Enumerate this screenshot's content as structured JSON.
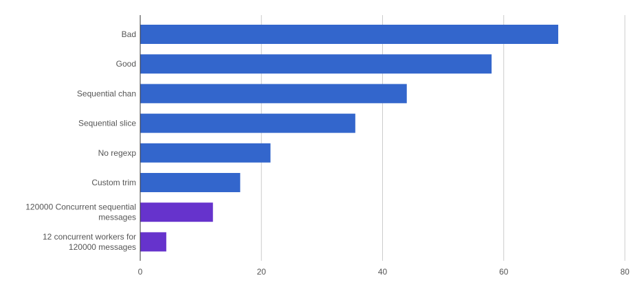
{
  "chart_data": {
    "type": "bar",
    "orientation": "horizontal",
    "title": "",
    "xlabel": "",
    "ylabel": "",
    "xlim": [
      0,
      80
    ],
    "xticks": [
      0,
      20,
      40,
      60,
      80
    ],
    "grid": true,
    "legend": "none",
    "categories": [
      [
        "Bad"
      ],
      [
        "Good"
      ],
      [
        "Sequential chan"
      ],
      [
        "Sequential slice"
      ],
      [
        "No regexp"
      ],
      [
        "Custom trim"
      ],
      [
        "120000 Concurrent sequential",
        "messages"
      ],
      [
        "12 concurrent workers for",
        "120000 messages"
      ]
    ],
    "values": [
      69,
      58,
      44,
      35.5,
      21.5,
      16.5,
      12,
      4.3
    ],
    "colors": [
      "#3366cc",
      "#3366cc",
      "#3366cc",
      "#3366cc",
      "#3366cc",
      "#3366cc",
      "#6633cc",
      "#6633cc"
    ]
  }
}
